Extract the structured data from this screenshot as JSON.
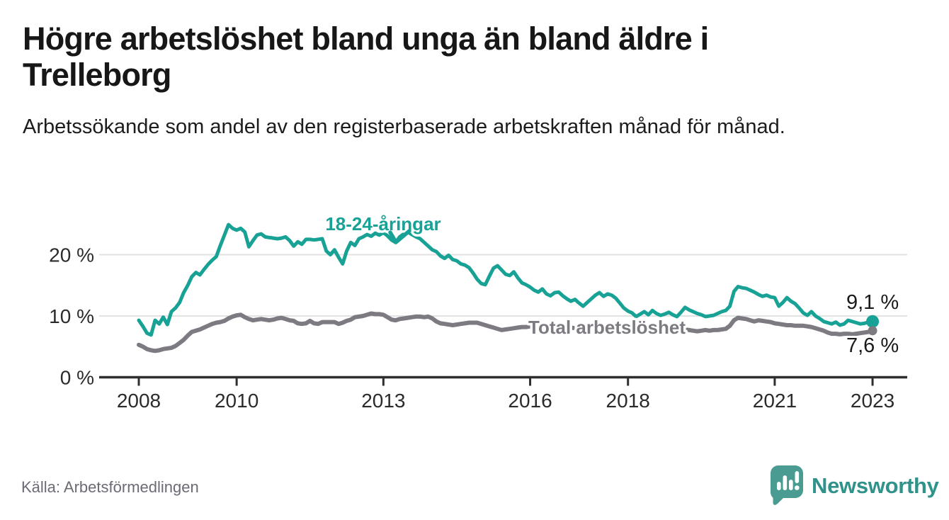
{
  "header": {
    "title": "Högre arbetslöshet bland unga än bland äldre i Trelleborg",
    "subtitle": "Arbetssökande som andel av den registerbaserade arbetskraften månad för månad."
  },
  "footer": {
    "source": "Källa: Arbetsförmedlingen",
    "brand": "Newsworthy"
  },
  "colors": {
    "youth_line": "#17a295",
    "total_line": "#7d7a81",
    "end_label_text": "#1a1a1a",
    "grid": "#e2e2e2",
    "axis": "#2e2e2e",
    "tick_text": "#2b2b2b",
    "source_text": "#6d6a75",
    "brand_teal": "#2f938b",
    "brand_icon_teal": "#4a9b92"
  },
  "chart_data": {
    "type": "line",
    "title": "Högre arbetslöshet bland unga än bland äldre i Trelleborg",
    "subtitle": "Arbetssökande som andel av den registerbaserade arbetskraften månad för månad.",
    "x_unit": "month",
    "x_start_year": 2008,
    "x_months_per_point": 1,
    "x_tick_years": [
      "2008",
      "2010",
      "2013",
      "2016",
      "2018",
      "2021",
      "2023"
    ],
    "y_ticks": [
      {
        "value": 0,
        "label": "0 %"
      },
      {
        "value": 10,
        "label": "10 %"
      },
      {
        "value": 20,
        "label": "20 %"
      }
    ],
    "ylim": [
      0,
      26.5
    ],
    "grid": "horizontal-only",
    "legend_position": "inline-labels",
    "series": [
      {
        "name": "18-24-åringar",
        "color_key": "youth_line",
        "end_label": "9,1 %",
        "last_value": 9.1,
        "values": [
          9.3,
          8.3,
          7.2,
          6.9,
          9.3,
          8.7,
          9.8,
          8.6,
          10.7,
          11.3,
          12.2,
          13.8,
          15.0,
          16.4,
          17.1,
          16.7,
          17.6,
          18.4,
          19.1,
          19.7,
          21.5,
          23.2,
          24.9,
          24.3,
          24.0,
          24.3,
          23.7,
          21.3,
          22.3,
          23.2,
          23.4,
          22.9,
          22.8,
          22.7,
          22.6,
          22.7,
          22.9,
          22.3,
          21.4,
          22.1,
          21.7,
          22.5,
          22.5,
          22.4,
          22.5,
          22.6,
          20.6,
          20.0,
          20.8,
          19.6,
          18.5,
          20.6,
          22.0,
          21.5,
          22.6,
          22.9,
          23.3,
          23.0,
          23.5,
          23.2,
          23.6,
          23.1,
          22.4,
          22.0,
          22.9,
          23.4,
          23.7,
          23.3,
          22.9,
          22.6,
          22.0,
          21.4,
          20.8,
          20.5,
          19.8,
          19.4,
          19.9,
          19.2,
          19.0,
          18.5,
          18.3,
          17.9,
          17.0,
          16.0,
          15.3,
          15.1,
          16.5,
          17.8,
          18.2,
          17.5,
          16.8,
          16.6,
          17.2,
          16.2,
          15.4,
          15.1,
          14.7,
          14.2,
          13.9,
          14.4,
          13.6,
          13.3,
          13.8,
          13.9,
          13.3,
          12.8,
          12.4,
          12.7,
          12.1,
          11.6,
          12.2,
          12.8,
          13.4,
          13.8,
          13.2,
          13.6,
          13.4,
          12.9,
          12.1,
          11.3,
          10.8,
          10.5,
          9.9,
          10.3,
          10.7,
          10.2,
          10.9,
          10.4,
          10.1,
          10.3,
          10.6,
          10.2,
          9.9,
          10.6,
          11.4,
          11.0,
          10.7,
          10.4,
          10.2,
          9.9,
          10.0,
          10.1,
          10.4,
          10.7,
          10.9,
          11.6,
          14.0,
          14.8,
          14.6,
          14.5,
          14.2,
          13.9,
          13.5,
          13.2,
          13.4,
          13.1,
          13.0,
          11.6,
          12.2,
          13.0,
          12.4,
          12.0,
          11.3,
          10.5,
          10.1,
          10.7,
          10.0,
          9.6,
          9.1,
          8.9,
          8.7,
          9.0,
          8.5,
          8.7,
          9.3,
          9.1,
          8.9,
          8.7,
          8.8,
          9.0,
          9.1
        ]
      },
      {
        "name": "Total arbetslöshet",
        "color_key": "total_line",
        "end_label": "7,6 %",
        "last_value": 7.6,
        "values": [
          5.3,
          5.0,
          4.6,
          4.4,
          4.3,
          4.4,
          4.6,
          4.7,
          4.8,
          5.1,
          5.6,
          6.1,
          6.8,
          7.4,
          7.6,
          7.8,
          8.1,
          8.4,
          8.7,
          8.9,
          9.0,
          9.2,
          9.6,
          9.9,
          10.1,
          10.2,
          9.8,
          9.5,
          9.3,
          9.4,
          9.5,
          9.4,
          9.3,
          9.4,
          9.6,
          9.7,
          9.5,
          9.3,
          9.2,
          8.8,
          8.7,
          8.8,
          9.2,
          8.8,
          8.7,
          9.0,
          9.0,
          9.0,
          9.0,
          8.7,
          8.9,
          9.2,
          9.4,
          9.8,
          9.9,
          10.0,
          10.2,
          10.4,
          10.3,
          10.3,
          10.2,
          9.8,
          9.4,
          9.3,
          9.5,
          9.6,
          9.7,
          9.8,
          9.9,
          9.9,
          9.8,
          9.9,
          9.6,
          9.1,
          8.8,
          8.7,
          8.6,
          8.5,
          8.6,
          8.7,
          8.8,
          8.9,
          8.9,
          8.9,
          8.7,
          8.5,
          8.3,
          8.1,
          7.9,
          7.7,
          7.8,
          7.9,
          8.0,
          8.1,
          8.2,
          8.2,
          8.3,
          8.2,
          8.1,
          8.2,
          8.1,
          8.0,
          8.1,
          8.2,
          8.1,
          8.0,
          8.1,
          8.0,
          8.0,
          7.9,
          8.0,
          8.1,
          8.0,
          7.9,
          7.8,
          7.9,
          8.0,
          7.9,
          7.8,
          7.9,
          7.8,
          7.9,
          7.8,
          7.7,
          7.8,
          7.7,
          7.6,
          7.7,
          7.8,
          7.7,
          7.6,
          7.7,
          7.6,
          7.7,
          7.8,
          7.7,
          7.6,
          7.5,
          7.6,
          7.7,
          7.6,
          7.7,
          7.7,
          7.8,
          7.9,
          8.4,
          9.3,
          9.7,
          9.6,
          9.5,
          9.3,
          9.1,
          9.3,
          9.2,
          9.1,
          9.0,
          8.8,
          8.7,
          8.6,
          8.5,
          8.5,
          8.4,
          8.4,
          8.4,
          8.3,
          8.2,
          8.0,
          7.8,
          7.6,
          7.3,
          7.1,
          7.1,
          7.0,
          7.1,
          7.1,
          7.0,
          7.1,
          7.2,
          7.3,
          7.4,
          7.6
        ]
      }
    ]
  }
}
